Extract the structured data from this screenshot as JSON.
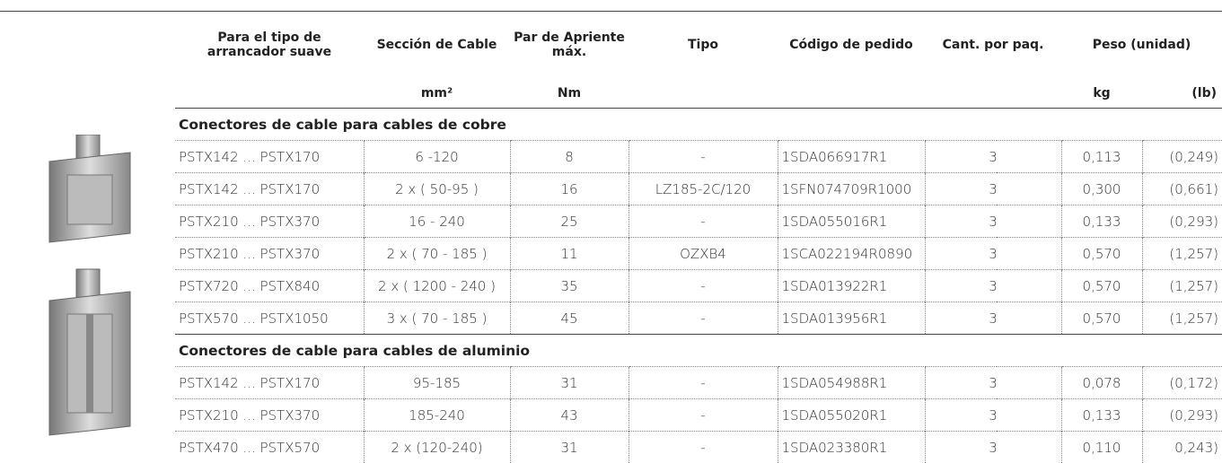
{
  "header": {
    "columns": [
      "Para el tipo de arrancador suave",
      "Sección de Cable",
      "Par de Apriente máx.",
      "Tipo",
      "Código de pedido",
      "Cant. por paq.",
      "Peso (unidad)"
    ],
    "units": {
      "seccion": "mm²",
      "par": "Nm",
      "kg": "kg",
      "lb": "(lb)"
    }
  },
  "sections": [
    {
      "title": "Conectores de cable para cables de cobre",
      "rows": [
        [
          "PSTX142 ... PSTX170",
          "6 -120",
          "8",
          "-",
          "1SDA066917R1",
          "3",
          "0,113",
          "(0,249)"
        ],
        [
          "PSTX142 ... PSTX170",
          "2 x ( 50-95 )",
          "16",
          "LZ185-2C/120",
          "1SFN074709R1000",
          "3",
          "0,300",
          "(0,661)"
        ],
        [
          "PSTX210 ... PSTX370",
          "16 - 240",
          "25",
          "-",
          "1SDA055016R1",
          "3",
          "0,133",
          "(0,293)"
        ],
        [
          "PSTX210 ... PSTX370",
          "2 x ( 70 - 185 )",
          "11",
          "OZXB4",
          "1SCA022194R0890",
          "3",
          "0,570",
          "(1,257)"
        ],
        [
          "PSTX720 ... PSTX840",
          "2 x ( 1200 - 240 )",
          "35",
          "-",
          "1SDA013922R1",
          "3",
          "0,570",
          "(1,257)"
        ],
        [
          "PSTX570 ... PSTX1050",
          "3 x ( 70 - 185 )",
          "45",
          "-",
          "1SDA013956R1",
          "3",
          "0,570",
          "(1,257)"
        ]
      ]
    },
    {
      "title": "Conectores de cable para cables de aluminio",
      "rows": [
        [
          "PSTX142 ... PSTX170",
          "95-185",
          "31",
          "-",
          "1SDA054988R1",
          "3",
          "0,078",
          "(0,172)"
        ],
        [
          "PSTX210 ... PSTX370",
          "185-240",
          "43",
          "-",
          "1SDA055020R1",
          "3",
          "0,133",
          "(0,293)"
        ],
        [
          "PSTX470 ... PSTX570",
          "2 x (120-240)",
          "31",
          "-",
          "1SDA023380R1",
          "3",
          "0,110",
          "0,243)"
        ]
      ]
    }
  ]
}
